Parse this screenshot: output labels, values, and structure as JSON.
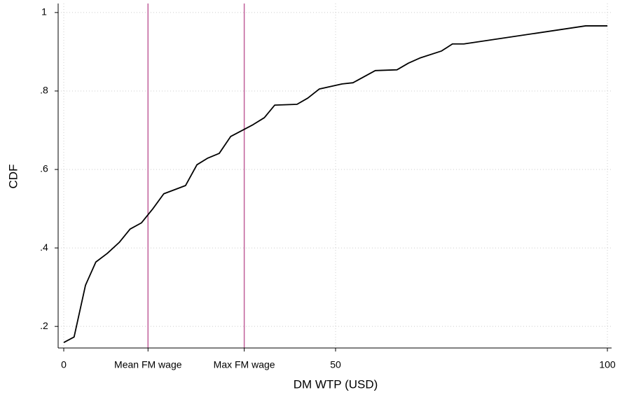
{
  "chart_data": {
    "type": "line",
    "xlabel": "DM WTP (USD)",
    "ylabel": "CDF",
    "x": [
      0,
      1.9,
      4.0,
      5.9,
      8.0,
      10.2,
      12.2,
      14.3,
      16.4,
      18.4,
      22.4,
      24.5,
      26.5,
      28.6,
      30.7,
      34.8,
      36.9,
      38.8,
      42.9,
      44.9,
      47.0,
      51.2,
      53.2,
      57.3,
      61.3,
      63.4,
      65.5,
      69.5,
      71.5,
      73.6,
      96.0,
      100
    ],
    "series": [
      {
        "color": "#000000",
        "values": [
          0.159,
          0.173,
          0.305,
          0.364,
          0.386,
          0.414,
          0.448,
          0.464,
          0.5,
          0.538,
          0.559,
          0.612,
          0.629,
          0.641,
          0.684,
          0.714,
          0.732,
          0.764,
          0.766,
          0.782,
          0.805,
          0.818,
          0.821,
          0.852,
          0.854,
          0.871,
          0.884,
          0.902,
          0.92,
          0.92,
          0.966,
          0.966
        ]
      }
    ],
    "xlim": [
      0,
      100
    ],
    "ylim": [
      0.145,
      1.023
    ],
    "xticks": [
      0,
      {
        "value": 15.5,
        "label": "Mean FM wage"
      },
      {
        "value": 33.2,
        "label": "Max FM wage"
      },
      50,
      100
    ],
    "yticks": [
      {
        "value": 0.2,
        "label": ".2"
      },
      {
        "value": 0.4,
        "label": ".4"
      },
      {
        "value": 0.6,
        "label": ".6"
      },
      {
        "value": 0.8,
        "label": ".8"
      },
      1
    ],
    "xgrid": [
      0,
      50,
      100
    ],
    "xlines": [
      15.5,
      33.2
    ],
    "xline_color": "#c0609a",
    "grid": true
  }
}
